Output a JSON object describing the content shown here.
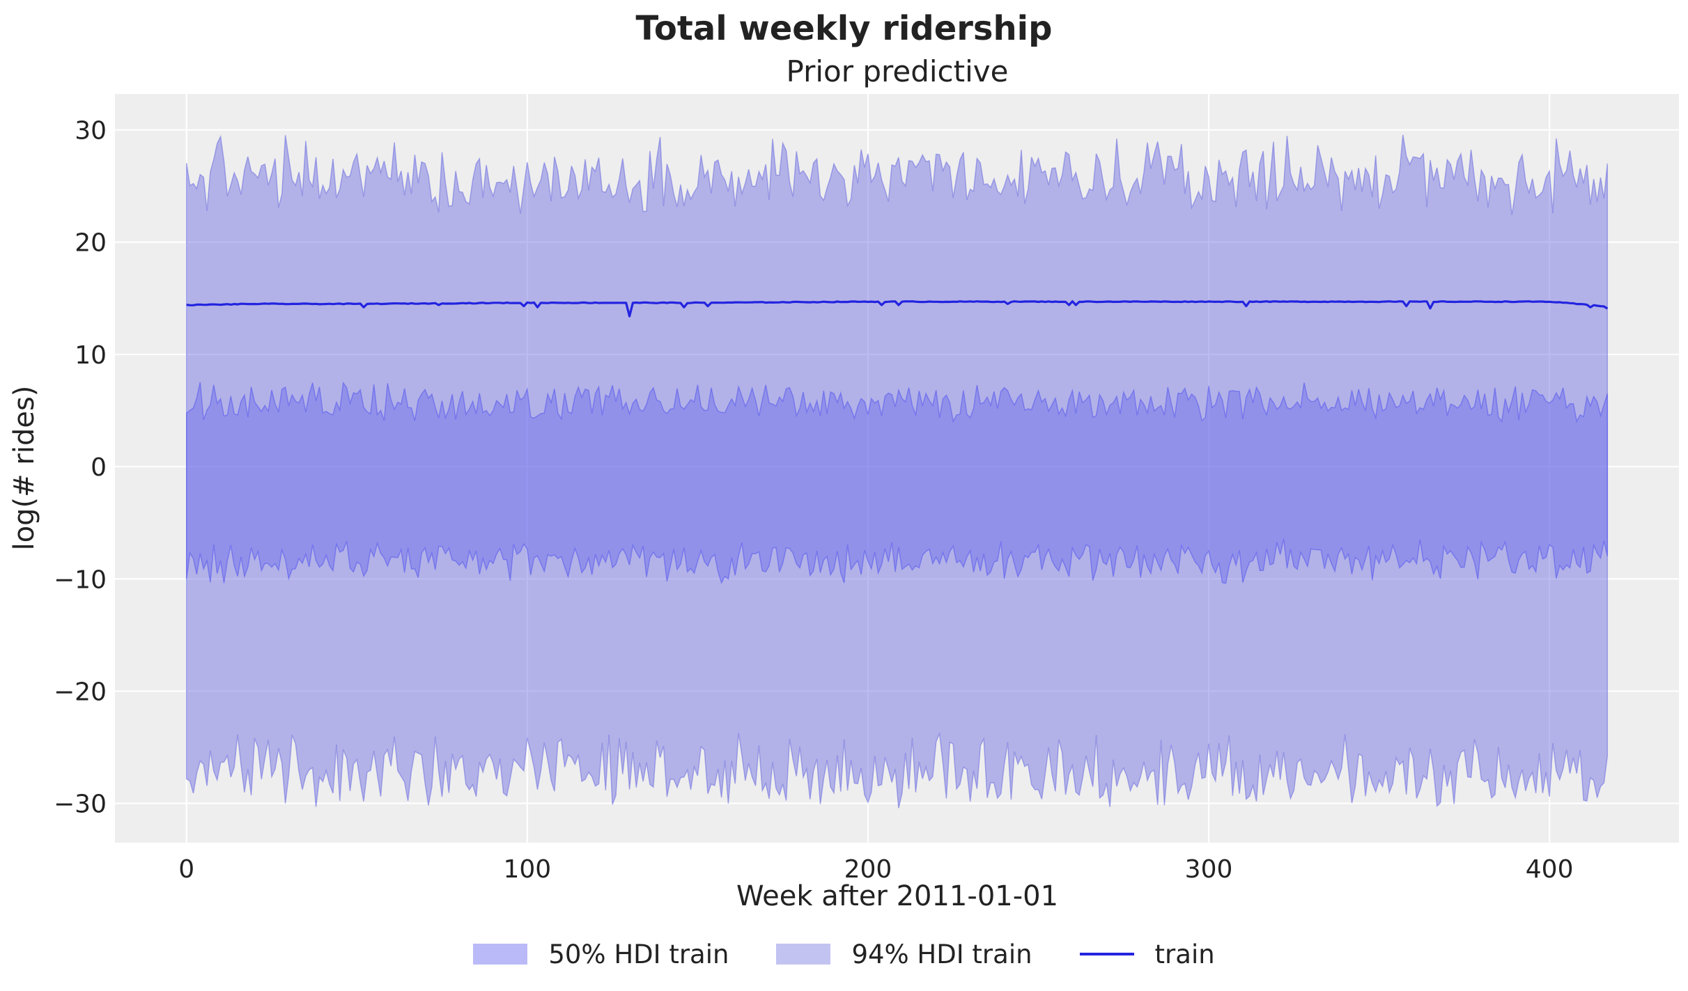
{
  "chart_data": {
    "type": "area",
    "suptitle": "Total weekly ridership",
    "title": "Prior predictive",
    "xlabel": "Week after 2011-01-01",
    "ylabel": "log(# rides)",
    "xlim": [
      -21,
      438
    ],
    "ylim": [
      -33.5,
      33.2
    ],
    "xticks": [
      0,
      100,
      200,
      300,
      400
    ],
    "yticks": [
      -30,
      -20,
      -10,
      0,
      10,
      20,
      30
    ],
    "xtick_labels": [
      "0",
      "100",
      "200",
      "300",
      "400"
    ],
    "ytick_labels": [
      "−30",
      "−20",
      "−10",
      "0",
      "10",
      "20",
      "30"
    ],
    "grid": true,
    "legend_position": "bottom-center",
    "x_range": [
      0,
      417
    ],
    "series": [
      {
        "name": "50% HDI train",
        "kind": "band",
        "color": "#5555ee",
        "upper_typical": 6.3,
        "upper_range": [
          4.0,
          8.0
        ],
        "lower_typical": -7.7,
        "lower_range": [
          -10.4,
          -6.1
        ]
      },
      {
        "name": "94% HDI train",
        "kind": "band",
        "color": "#6b6be0",
        "upper_typical": 24.5,
        "upper_range": [
          21.8,
          29.6
        ],
        "lower_typical": -26.3,
        "lower_range": [
          -30.5,
          -23.0
        ]
      },
      {
        "name": "train",
        "kind": "line",
        "color": "#2323e0",
        "points": [
          [
            0,
            14.4
          ],
          [
            20,
            14.5
          ],
          [
            50,
            14.5
          ],
          [
            100,
            14.6
          ],
          [
            129,
            14.6
          ],
          [
            130,
            13.4
          ],
          [
            131,
            14.6
          ],
          [
            150,
            14.6
          ],
          [
            200,
            14.7
          ],
          [
            250,
            14.7
          ],
          [
            300,
            14.7
          ],
          [
            350,
            14.7
          ],
          [
            400,
            14.7
          ],
          [
            416,
            14.3
          ],
          [
            417,
            14.1
          ]
        ],
        "dips": [
          [
            52,
            14.2
          ],
          [
            74,
            14.4
          ],
          [
            99,
            14.3
          ],
          [
            103,
            14.2
          ],
          [
            146,
            14.2
          ],
          [
            153,
            14.3
          ],
          [
            204,
            14.4
          ],
          [
            209,
            14.4
          ],
          [
            241,
            14.5
          ],
          [
            259,
            14.4
          ],
          [
            261,
            14.4
          ],
          [
            311,
            14.3
          ],
          [
            358,
            14.3
          ],
          [
            365,
            14.1
          ],
          [
            412,
            14.2
          ]
        ]
      }
    ]
  },
  "legend": {
    "items": [
      {
        "label": "50% HDI train"
      },
      {
        "label": "94% HDI train"
      },
      {
        "label": "train"
      }
    ]
  }
}
